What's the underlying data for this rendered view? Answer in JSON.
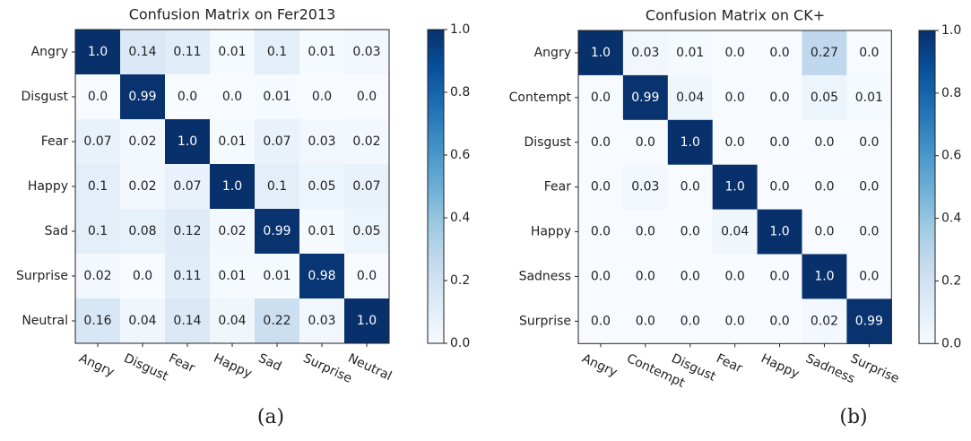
{
  "chart_data": [
    {
      "type": "heatmap",
      "title": "Confusion Matrix on Fer2013",
      "caption": "(a)",
      "categories": [
        "Angry",
        "Disgust",
        "Fear",
        "Happy",
        "Sad",
        "Surprise",
        "Neutral"
      ],
      "values": [
        [
          1.0,
          0.14,
          0.11,
          0.01,
          0.1,
          0.01,
          0.03
        ],
        [
          0.0,
          0.99,
          0.0,
          0.0,
          0.01,
          0.0,
          0.0
        ],
        [
          0.07,
          0.02,
          1.0,
          0.01,
          0.07,
          0.03,
          0.02
        ],
        [
          0.1,
          0.02,
          0.07,
          1.0,
          0.1,
          0.05,
          0.07
        ],
        [
          0.1,
          0.08,
          0.12,
          0.02,
          0.99,
          0.01,
          0.05
        ],
        [
          0.02,
          0.0,
          0.11,
          0.01,
          0.01,
          0.98,
          0.0
        ],
        [
          0.16,
          0.04,
          0.14,
          0.04,
          0.22,
          0.03,
          1.0
        ]
      ],
      "value_labels": [
        [
          "1.0",
          "0.14",
          "0.11",
          "0.01",
          "0.1",
          "0.01",
          "0.03"
        ],
        [
          "0.0",
          "0.99",
          "0.0",
          "0.0",
          "0.01",
          "0.0",
          "0.0"
        ],
        [
          "0.07",
          "0.02",
          "1.0",
          "0.01",
          "0.07",
          "0.03",
          "0.02"
        ],
        [
          "0.1",
          "0.02",
          "0.07",
          "1.0",
          "0.1",
          "0.05",
          "0.07"
        ],
        [
          "0.1",
          "0.08",
          "0.12",
          "0.02",
          "0.99",
          "0.01",
          "0.05"
        ],
        [
          "0.02",
          "0.0",
          "0.11",
          "0.01",
          "0.01",
          "0.98",
          "0.0"
        ],
        [
          "0.16",
          "0.04",
          "0.14",
          "0.04",
          "0.22",
          "0.03",
          "1.0"
        ]
      ],
      "colormap": "Blues",
      "clim": [
        0,
        1
      ],
      "cticks": [
        {
          "value": 0,
          "label": "0.0"
        },
        0.2,
        0.4,
        0.6,
        0.8,
        {
          "value": 1,
          "label": "1.0"
        }
      ]
    },
    {
      "type": "heatmap",
      "title": "Confusion Matrix on CK+",
      "caption": "(b)",
      "categories": [
        "Angry",
        "Contempt",
        "Disgust",
        "Fear",
        "Happy",
        "Sadness",
        "Surprise"
      ],
      "values": [
        [
          1.0,
          0.03,
          0.01,
          0.0,
          0.0,
          0.27,
          0.0
        ],
        [
          0.0,
          0.99,
          0.04,
          0.0,
          0.0,
          0.05,
          0.01
        ],
        [
          0.0,
          0.0,
          1.0,
          0.0,
          0.0,
          0.0,
          0.0
        ],
        [
          0.0,
          0.03,
          0.0,
          1.0,
          0.0,
          0.0,
          0.0
        ],
        [
          0.0,
          0.0,
          0.0,
          0.04,
          1.0,
          0.0,
          0.0
        ],
        [
          0.0,
          0.0,
          0.0,
          0.0,
          0.0,
          1.0,
          0.0
        ],
        [
          0.0,
          0.0,
          0.0,
          0.0,
          0.0,
          0.02,
          0.99
        ]
      ],
      "value_labels": [
        [
          "1.0",
          "0.03",
          "0.01",
          "0.0",
          "0.0",
          "0.27",
          "0.0"
        ],
        [
          "0.0",
          "0.99",
          "0.04",
          "0.0",
          "0.0",
          "0.05",
          "0.01"
        ],
        [
          "0.0",
          "0.0",
          "1.0",
          "0.0",
          "0.0",
          "0.0",
          "0.0"
        ],
        [
          "0.0",
          "0.03",
          "0.0",
          "1.0",
          "0.0",
          "0.0",
          "0.0"
        ],
        [
          "0.0",
          "0.0",
          "0.0",
          "0.04",
          "1.0",
          "0.0",
          "0.0"
        ],
        [
          "0.0",
          "0.0",
          "0.0",
          "0.0",
          "0.0",
          "1.0",
          "0.0"
        ],
        [
          "0.0",
          "0.0",
          "0.0",
          "0.0",
          "0.0",
          "0.02",
          "0.99"
        ]
      ],
      "colormap": "Blues",
      "clim": [
        0,
        1
      ],
      "cticks": [
        {
          "value": 0,
          "label": "0.0"
        },
        0.2,
        0.4,
        0.6,
        0.8,
        {
          "value": 1,
          "label": "1.0"
        }
      ]
    }
  ]
}
